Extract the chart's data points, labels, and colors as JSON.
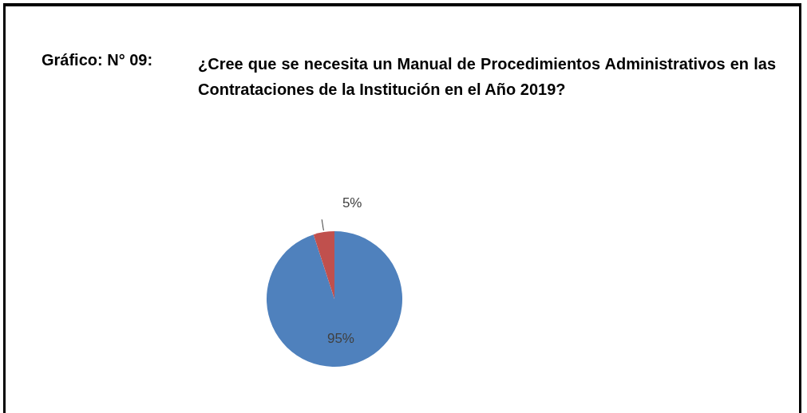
{
  "chart_data": {
    "type": "pie",
    "title": "Gráfico: N° 09:",
    "subtitle": "¿Cree que se necesita un Manual de Procedimientos Administrativos en las Contrataciones de la Institución en el Año 2019?",
    "categories": [
      null,
      null
    ],
    "values": [
      95,
      5
    ],
    "colors": [
      "#4f81bd",
      "#c0504d"
    ],
    "value_labels": [
      "95%",
      "5%"
    ]
  }
}
